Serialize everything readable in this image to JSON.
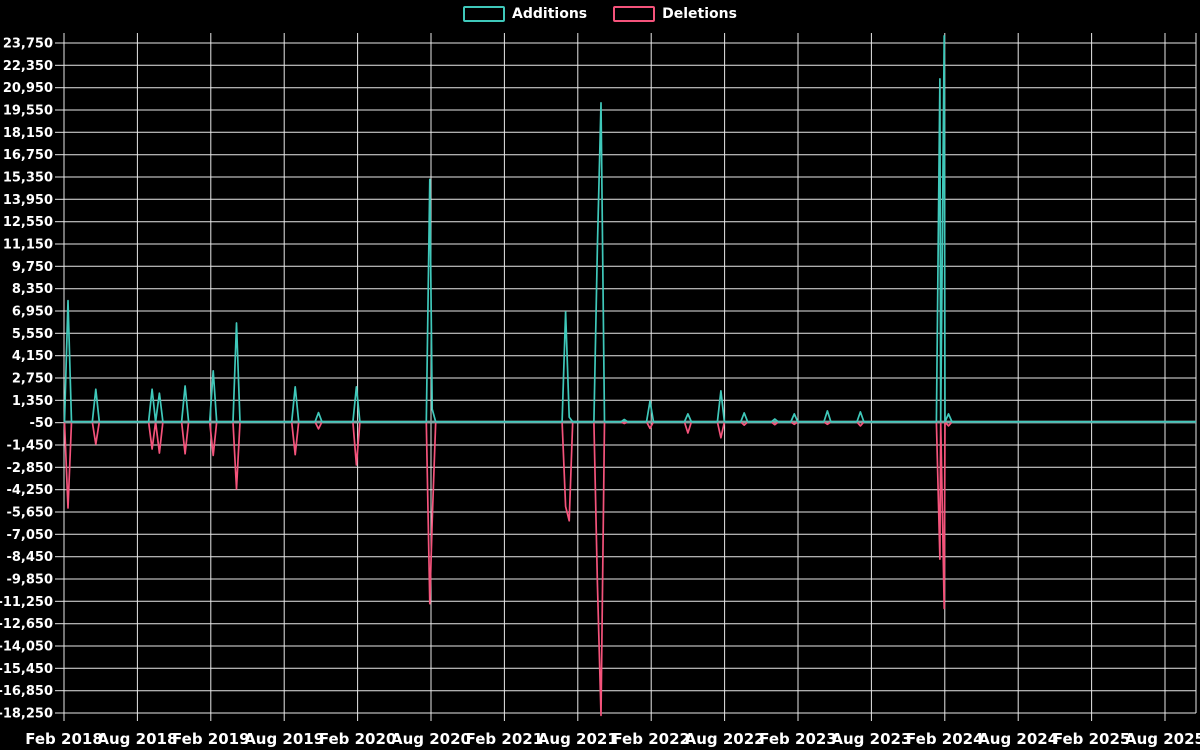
{
  "legend": {
    "items": [
      {
        "label": "Additions",
        "color": "#3fc8ba"
      },
      {
        "label": "Deletions",
        "color": "#f4537b"
      }
    ]
  },
  "colors": {
    "additions": "#3fc8ba",
    "deletions": "#f4537b",
    "zero_line": "#7aa9a6",
    "grid": "#e8e8e8",
    "background": "#000000",
    "text": "#ffffff"
  },
  "chart_data": {
    "type": "line",
    "title": "",
    "xlabel": "",
    "ylabel": "",
    "legend_position": "top-center",
    "grid": true,
    "x_axis": {
      "labels": [
        "Feb 2018",
        "Aug 2018",
        "Feb 2019",
        "Aug 2019",
        "Feb 2020",
        "Aug 2020",
        "Feb 2021",
        "Aug 2021",
        "Feb 2022",
        "Aug 2022",
        "Feb 2023",
        "Aug 2023",
        "Feb 2024",
        "Aug 2024",
        "Feb 2025",
        "Aug 2025"
      ]
    },
    "y_axis": {
      "min": -18250,
      "max": 23750,
      "step": 1400,
      "tick_labels": [
        23750,
        22350,
        20950,
        19550,
        18150,
        16750,
        15350,
        13950,
        12550,
        11150,
        9750,
        8350,
        6950,
        5550,
        4150,
        2750,
        1350,
        -50,
        -1450,
        -2850,
        -4250,
        -5650,
        -7050,
        -8450,
        -9850,
        -11250,
        -12650,
        -14050,
        -15450,
        -16850,
        -18250
      ]
    },
    "series": [
      {
        "name": "Additions",
        "color": "#3fc8ba"
      },
      {
        "name": "Deletions",
        "color": "#f4537b"
      }
    ],
    "baseline_value": 0,
    "events_format": "[months_after_Feb_2018, additions, deletions]; all other weeks are ~0",
    "events": [
      [
        0.33,
        7600,
        -5400
      ],
      [
        2.6,
        2050,
        -1400
      ],
      [
        7.2,
        2050,
        -1700
      ],
      [
        7.8,
        1800,
        -1950
      ],
      [
        9.9,
        2250,
        -2000
      ],
      [
        12.2,
        3200,
        -2100
      ],
      [
        14.1,
        6200,
        -4200
      ],
      [
        18.9,
        2200,
        -2050
      ],
      [
        20.8,
        580,
        -440
      ],
      [
        23.9,
        2200,
        -2700
      ],
      [
        29.9,
        15200,
        -11400
      ],
      [
        30.1,
        800,
        -6200
      ],
      [
        41.0,
        6900,
        -5300
      ],
      [
        41.3,
        300,
        -6200
      ],
      [
        43.6,
        11000,
        -10100
      ],
      [
        43.9,
        20000,
        -18400
      ],
      [
        45.8,
        150,
        -100
      ],
      [
        47.9,
        1300,
        -400
      ],
      [
        51.0,
        500,
        -700
      ],
      [
        53.7,
        1950,
        -1000
      ],
      [
        55.6,
        560,
        -200
      ],
      [
        58.1,
        180,
        -180
      ],
      [
        59.7,
        500,
        -150
      ],
      [
        62.4,
        690,
        -150
      ],
      [
        65.1,
        625,
        -250
      ],
      [
        71.6,
        21500,
        -8600
      ],
      [
        71.95,
        24200,
        -11700
      ],
      [
        72.3,
        500,
        -250
      ]
    ]
  }
}
